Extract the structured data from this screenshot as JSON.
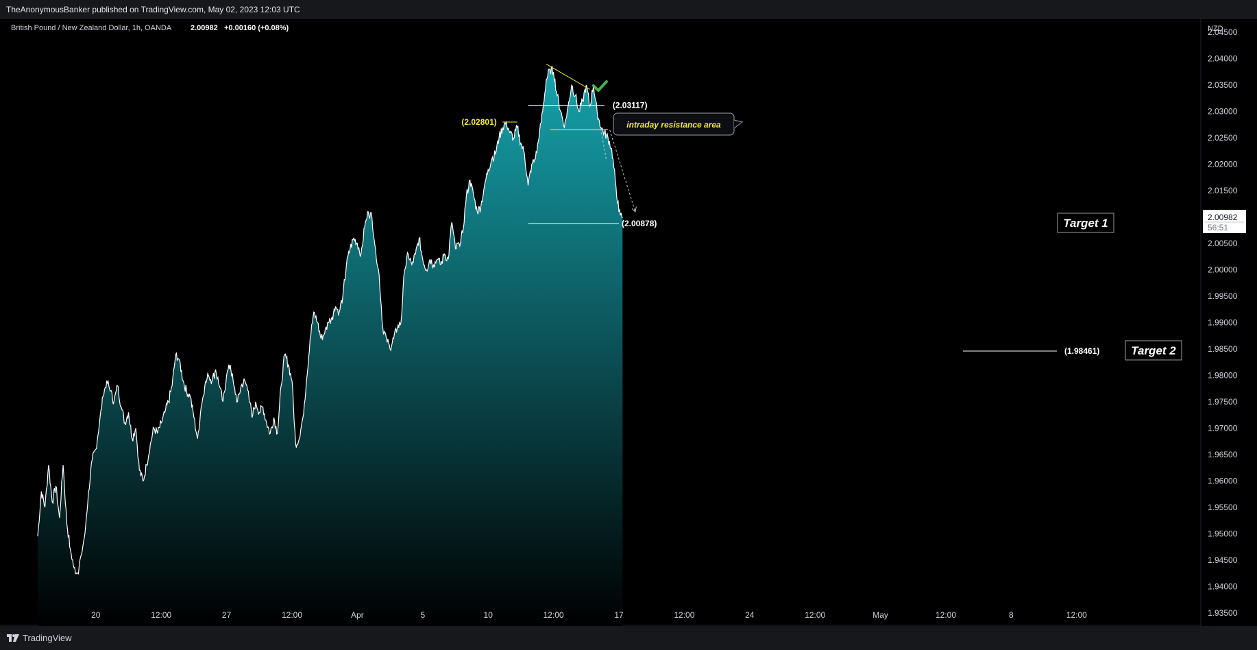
{
  "header": {
    "published_by": "TheAnonymousBanker published on TradingView.com, May 02, 2023 12:03 UTC"
  },
  "footer": {
    "brand": "TradingView",
    "logo_icon": "tradingview-logo-icon"
  },
  "colors": {
    "background": "#000000",
    "line": "#ffffff",
    "fill_top": "#16a3ad",
    "fill_bottom": "#000000",
    "annotation_yellow": "#f5e93a",
    "check_green": "#4caf50"
  },
  "chart_data": {
    "type": "area",
    "legend": {
      "symbol": "British Pound / New Zealand Dollar, 1h, OANDA",
      "price": "2.00982",
      "change": "+0.00160 (+0.08%)"
    },
    "currency": "NZD",
    "ylim": [
      1.9325,
      2.0475
    ],
    "y_ticks": [
      "2.04500",
      "2.04000",
      "2.03500",
      "2.03000",
      "2.02500",
      "2.02000",
      "2.01500",
      "2.01000",
      "2.00500",
      "2.00000",
      "1.99500",
      "1.99000",
      "1.98500",
      "1.98000",
      "1.97500",
      "1.97000",
      "1.96500",
      "1.96000",
      "1.95500",
      "1.95000",
      "1.94500",
      "1.94000",
      "1.93500"
    ],
    "x_ticks": [
      {
        "label": "20",
        "t": 6
      },
      {
        "label": "12:00",
        "t": 24
      },
      {
        "label": "27",
        "t": 42
      },
      {
        "label": "12:00",
        "t": 60
      },
      {
        "label": "Apr",
        "t": 78
      },
      {
        "label": "5",
        "t": 96
      },
      {
        "label": "10",
        "t": 114
      },
      {
        "label": "12:00",
        "t": 132
      },
      {
        "label": "17",
        "t": 150
      },
      {
        "label": "12:00",
        "t": 168
      },
      {
        "label": "24",
        "t": 186
      },
      {
        "label": "12:00",
        "t": 204
      },
      {
        "label": "May",
        "t": 222
      },
      {
        "label": "12:00",
        "t": 240
      },
      {
        "label": "8",
        "t": 258
      },
      {
        "label": "12:00",
        "t": 276
      }
    ],
    "last_price_label": {
      "price": "2.00982",
      "countdown": "56:51"
    },
    "series": [
      {
        "values": [
          [
            -10,
            1.9495
          ],
          [
            -9,
            1.958
          ],
          [
            -8,
            1.955
          ],
          [
            -7,
            1.963
          ],
          [
            -6,
            1.956
          ],
          [
            -5,
            1.959
          ],
          [
            -4,
            1.953
          ],
          [
            -3,
            1.963
          ],
          [
            -2,
            1.952
          ],
          [
            -1,
            1.947
          ],
          [
            0,
            1.9435
          ],
          [
            1,
            1.9425
          ],
          [
            2,
            1.946
          ],
          [
            3,
            1.95
          ],
          [
            4,
            1.958
          ],
          [
            5,
            1.964
          ],
          [
            6,
            1.966
          ],
          [
            7,
            1.971
          ],
          [
            8,
            1.976
          ],
          [
            9,
            1.979
          ],
          [
            10,
            1.977
          ],
          [
            11,
            1.975
          ],
          [
            12,
            1.978
          ],
          [
            13,
            1.974
          ],
          [
            14,
            1.971
          ],
          [
            15,
            1.973
          ],
          [
            16,
            1.968
          ],
          [
            17,
            1.97
          ],
          [
            18,
            1.962
          ],
          [
            19,
            1.96
          ],
          [
            20,
            1.963
          ],
          [
            21,
            1.967
          ],
          [
            22,
            1.97
          ],
          [
            23,
            1.969
          ],
          [
            24,
            1.971
          ],
          [
            25,
            1.973
          ],
          [
            26,
            1.975
          ],
          [
            27,
            1.978
          ],
          [
            28,
            1.984
          ],
          [
            29,
            1.983
          ],
          [
            30,
            1.979
          ],
          [
            31,
            1.977
          ],
          [
            32,
            1.976
          ],
          [
            33,
            1.972
          ],
          [
            34,
            1.968
          ],
          [
            35,
            1.974
          ],
          [
            36,
            1.978
          ],
          [
            37,
            1.98
          ],
          [
            38,
            1.979
          ],
          [
            39,
            1.981
          ],
          [
            40,
            1.978
          ],
          [
            41,
            1.975
          ],
          [
            42,
            1.98
          ],
          [
            43,
            1.982
          ],
          [
            44,
            1.978
          ],
          [
            45,
            1.975
          ],
          [
            46,
            1.978
          ],
          [
            47,
            1.979
          ],
          [
            48,
            1.977
          ],
          [
            49,
            1.972
          ],
          [
            50,
            1.975
          ],
          [
            51,
            1.973
          ],
          [
            52,
            1.974
          ],
          [
            53,
            1.971
          ],
          [
            54,
            1.969
          ],
          [
            55,
            1.972
          ],
          [
            56,
            1.969
          ],
          [
            57,
            1.978
          ],
          [
            58,
            1.984
          ],
          [
            59,
            1.982
          ],
          [
            60,
            1.979
          ],
          [
            61,
            1.967
          ],
          [
            62,
            1.968
          ],
          [
            63,
            1.972
          ],
          [
            64,
            1.979
          ],
          [
            65,
            1.987
          ],
          [
            66,
            1.992
          ],
          [
            67,
            1.99
          ],
          [
            68,
            1.987
          ],
          [
            69,
            1.988
          ],
          [
            70,
            1.99
          ],
          [
            71,
            1.991
          ],
          [
            72,
            1.993
          ],
          [
            73,
            1.992
          ],
          [
            74,
            1.995
          ],
          [
            75,
            2.001
          ],
          [
            76,
            2.004
          ],
          [
            77,
            2.006
          ],
          [
            78,
            2.005
          ],
          [
            79,
            2.003
          ],
          [
            80,
            2.008
          ],
          [
            81,
            2.011
          ],
          [
            82,
            2.01
          ],
          [
            83,
            2.004
          ],
          [
            84,
            1.999
          ],
          [
            85,
            1.989
          ],
          [
            86,
            1.987
          ],
          [
            87,
            1.985
          ],
          [
            88,
            1.987
          ],
          [
            89,
            1.989
          ],
          [
            90,
            1.99
          ],
          [
            91,
            2.0
          ],
          [
            92,
            2.003
          ],
          [
            93,
            2.001
          ],
          [
            94,
            2.003
          ],
          [
            95,
            2.006
          ],
          [
            96,
            2.002
          ],
          [
            97,
            2.0
          ],
          [
            98,
            2.002
          ],
          [
            99,
            2.001
          ],
          [
            100,
            2.002
          ],
          [
            101,
            2.001
          ],
          [
            102,
            2.003
          ],
          [
            103,
            2.002
          ],
          [
            104,
            2.009
          ],
          [
            105,
            2.004
          ],
          [
            106,
            2.005
          ],
          [
            107,
            2.007
          ],
          [
            108,
            2.014
          ],
          [
            109,
            2.017
          ],
          [
            110,
            2.014
          ],
          [
            111,
            2.011
          ],
          [
            112,
            2.012
          ],
          [
            113,
            2.016
          ],
          [
            114,
            2.019
          ],
          [
            115,
            2.021
          ],
          [
            116,
            2.022
          ],
          [
            117,
            2.025
          ],
          [
            118,
            2.027
          ],
          [
            119,
            2.028
          ],
          [
            120,
            2.026
          ],
          [
            121,
            2.025
          ],
          [
            122,
            2.027
          ],
          [
            123,
            2.024
          ],
          [
            124,
            2.022
          ],
          [
            125,
            2.016
          ],
          [
            126,
            2.02
          ],
          [
            127,
            2.021
          ],
          [
            128,
            2.025
          ],
          [
            129,
            2.03
          ],
          [
            130,
            2.036
          ],
          [
            131,
            2.038
          ],
          [
            132,
            2.0375
          ],
          [
            133,
            2.033
          ],
          [
            134,
            2.03
          ],
          [
            135,
            2.027
          ],
          [
            136,
            2.031
          ],
          [
            137,
            2.035
          ],
          [
            138,
            2.033
          ],
          [
            139,
            2.03
          ],
          [
            140,
            2.032
          ],
          [
            141,
            2.035
          ],
          [
            142,
            2.031
          ],
          [
            143,
            2.035
          ],
          [
            144,
            2.03
          ],
          [
            145,
            2.027
          ],
          [
            146,
            2.026
          ],
          [
            147,
            2.025
          ],
          [
            148,
            2.023
          ],
          [
            149,
            2.017
          ],
          [
            150,
            2.011
          ],
          [
            151,
            2.00982
          ]
        ]
      }
    ],
    "annotations": {
      "resistance_callout": "intraday resistance area",
      "resistance_level": "(2.02801)",
      "level_upper": "(2.03117)",
      "level_target1": "(2.00878)",
      "target1_label": "Target 1",
      "level_target2": "(1.98461)",
      "target2_label": "Target 2"
    }
  }
}
